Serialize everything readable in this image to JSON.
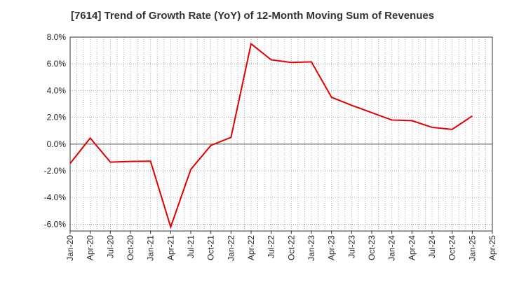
{
  "chart_data": {
    "type": "line",
    "title": "[7614]  Trend of Growth Rate (YoY) of 12-Month Moving Sum of Revenues",
    "xlabel": "",
    "ylabel": "",
    "x_tick_labels": [
      "Jan-20",
      "Apr-20",
      "Jul-20",
      "Oct-20",
      "Jan-21",
      "Apr-21",
      "Jul-21",
      "Oct-21",
      "Jan-22",
      "Apr-22",
      "Jul-22",
      "Oct-22",
      "Jan-23",
      "Apr-23",
      "Jul-23",
      "Oct-23",
      "Jan-24",
      "Apr-24",
      "Jul-24",
      "Oct-24",
      "Jan-25",
      "Apr-25"
    ],
    "y_tick_labels": [
      "8.0%",
      "6.0%",
      "4.0%",
      "2.0%",
      "0.0%",
      "-2.0%",
      "-4.0%",
      "-6.0%"
    ],
    "y_ticks": [
      8,
      6,
      4,
      2,
      0,
      -2,
      -4,
      -6
    ],
    "ylim": [
      -6.5,
      8.0
    ],
    "grid": true,
    "zero_line": true,
    "series": [
      {
        "color": "#e00000",
        "x": [
          "Jan-20",
          "Apr-20",
          "Jul-20",
          "Oct-20",
          "Jan-21",
          "Apr-21",
          "Jul-21",
          "Oct-21",
          "Jan-22",
          "Apr-22",
          "Jul-22",
          "Oct-22",
          "Jan-23",
          "Apr-23",
          "Jul-23",
          "Oct-23",
          "Jan-24",
          "Apr-24",
          "Jul-24",
          "Oct-24",
          "Jan-25"
        ],
        "values": [
          -1.45,
          0.45,
          -1.35,
          -1.3,
          -1.28,
          -6.2,
          -1.9,
          -0.1,
          0.5,
          7.5,
          6.3,
          6.1,
          6.15,
          3.5,
          2.9,
          2.35,
          1.8,
          1.75,
          1.25,
          1.1,
          2.1
        ]
      }
    ]
  }
}
